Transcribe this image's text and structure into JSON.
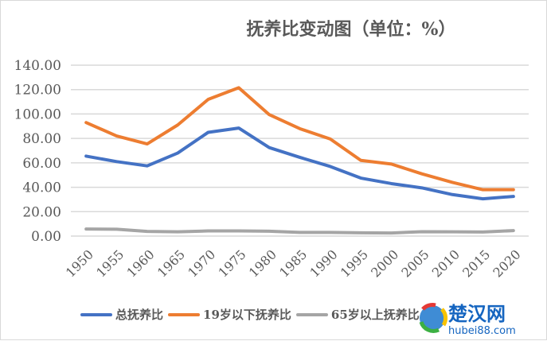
{
  "chart_data": {
    "type": "line",
    "title": "抚养比变动图（单位：%）",
    "categories": [
      "1950",
      "1955",
      "1960",
      "1965",
      "1970",
      "1975",
      "1980",
      "1985",
      "1990",
      "1995",
      "2000",
      "2005",
      "2010",
      "2015",
      "2020"
    ],
    "yticks": [
      "0.00",
      "20.00",
      "40.00",
      "60.00",
      "80.00",
      "100.00",
      "120.00",
      "140.00"
    ],
    "ylim": [
      0,
      140
    ],
    "grid": true,
    "legend_position": "bottom",
    "series": [
      {
        "name": "总抚养比",
        "color": "#4472c4",
        "values": [
          65.5,
          61,
          57.5,
          68,
          85,
          88.5,
          72.5,
          64.5,
          57,
          47.5,
          43,
          39.5,
          34,
          30.5,
          32.5
        ]
      },
      {
        "name": "19岁以下抚养比",
        "color": "#ed7d31",
        "values": [
          93,
          82,
          75.5,
          91,
          112,
          121.5,
          99.5,
          88,
          79.5,
          62,
          59,
          51,
          44,
          38,
          38
        ]
      },
      {
        "name": "65岁以上抚养比",
        "color": "#a5a5a5",
        "values": [
          5.8,
          5.6,
          3.8,
          3.5,
          4.2,
          4.2,
          4.0,
          3.0,
          3.0,
          2.7,
          2.5,
          3.6,
          3.5,
          3.3,
          4.5
        ]
      }
    ]
  },
  "watermark": {
    "text": "楚汉网",
    "url_text": "hubei88.com"
  }
}
